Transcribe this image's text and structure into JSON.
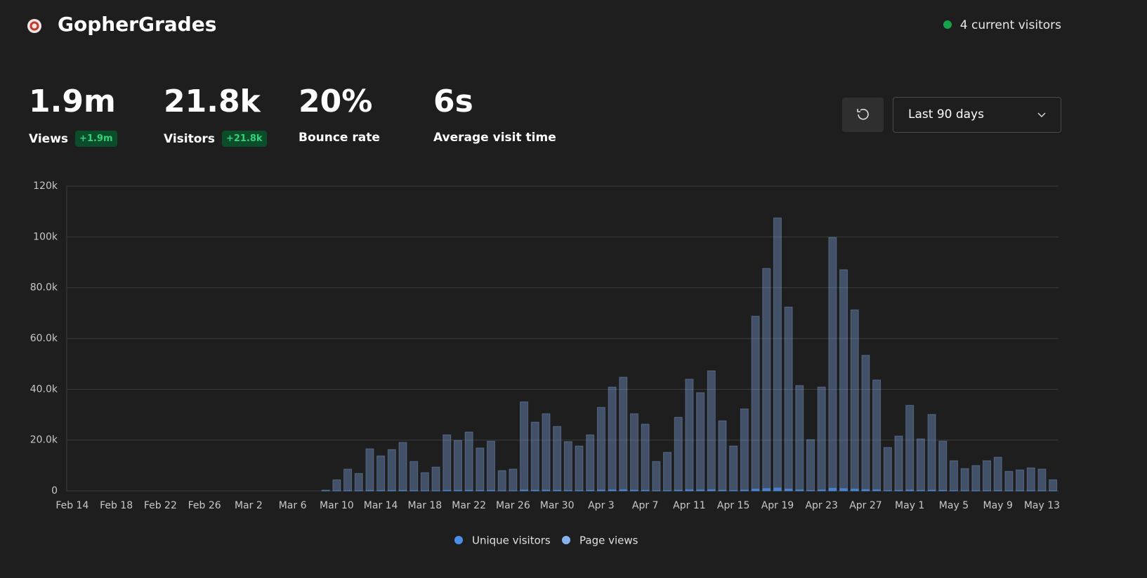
{
  "header": {
    "title": "GopherGrades",
    "visitors": "4 current visitors"
  },
  "stats": [
    {
      "value": "1.9m",
      "label": "Views",
      "change": "+1.9m"
    },
    {
      "value": "21.8k",
      "label": "Visitors",
      "change": "+21.8k"
    },
    {
      "value": "20%",
      "label": "Bounce rate"
    },
    {
      "value": "6s",
      "label": "Average visit time"
    }
  ],
  "controls": {
    "range": "Last 90 days"
  },
  "chart_data": {
    "type": "bar",
    "categories": [
      "Feb 14",
      null,
      null,
      null,
      "Feb 18",
      null,
      null,
      null,
      "Feb 22",
      null,
      null,
      null,
      "Feb 26",
      null,
      null,
      null,
      "Mar 2",
      null,
      null,
      null,
      "Mar 6",
      null,
      null,
      null,
      "Mar 10",
      null,
      null,
      null,
      "Mar 14",
      null,
      null,
      null,
      "Mar 18",
      null,
      null,
      null,
      "Mar 22",
      null,
      null,
      null,
      "Mar 26",
      null,
      null,
      null,
      "Mar 30",
      null,
      null,
      null,
      "Apr 3",
      null,
      null,
      null,
      "Apr 7",
      null,
      null,
      null,
      "Apr 11",
      null,
      null,
      null,
      "Apr 15",
      null,
      null,
      null,
      "Apr 19",
      null,
      null,
      null,
      "Apr 23",
      null,
      null,
      null,
      "Apr 27",
      null,
      null,
      null,
      "May 1",
      null,
      null,
      null,
      "May 5",
      null,
      null,
      null,
      "May 9",
      null,
      null,
      null,
      "May 13",
      null
    ],
    "series": [
      {
        "name": "Unique visitors",
        "color": "#4a8fe7",
        "values": [
          0,
          0,
          0,
          0,
          0,
          0,
          0,
          0,
          0,
          0,
          0,
          0,
          0,
          0,
          0,
          0,
          0,
          0,
          0,
          0,
          0,
          0,
          0,
          10,
          50,
          100,
          80,
          190,
          160,
          180,
          210,
          130,
          80,
          100,
          250,
          220,
          260,
          190,
          220,
          90,
          100,
          390,
          300,
          340,
          280,
          220,
          200,
          250,
          370,
          450,
          500,
          340,
          290,
          130,
          170,
          320,
          490,
          430,
          530,
          310,
          200,
          360,
          760,
          970,
          1190,
          800,
          460,
          220,
          450,
          1110,
          970,
          790,
          590,
          490,
          190,
          240,
          370,
          230,
          330,
          220,
          130,
          100,
          110,
          130,
          150,
          90,
          90,
          100,
          100,
          50
        ]
      },
      {
        "name": "Page views",
        "color": "#86b3f0",
        "values": [
          0,
          0,
          0,
          0,
          0,
          0,
          0,
          0,
          0,
          0,
          0,
          0,
          0,
          0,
          0,
          0,
          0,
          0,
          0,
          0,
          0,
          0,
          0,
          300,
          4400,
          8600,
          6900,
          16600,
          13800,
          16300,
          19100,
          11600,
          7200,
          9400,
          22100,
          19900,
          23200,
          16900,
          19600,
          8000,
          8600,
          35100,
          27100,
          30400,
          25400,
          19400,
          17700,
          22100,
          32900,
          40900,
          44800,
          30400,
          26300,
          11600,
          15200,
          29000,
          44000,
          38700,
          47300,
          27600,
          17700,
          32300,
          68800,
          87600,
          107500,
          72400,
          41500,
          20200,
          40900,
          99800,
          87100,
          71300,
          53400,
          43700,
          17100,
          21600,
          33700,
          20500,
          30100,
          19600,
          11900,
          8800,
          10000,
          11900,
          13300,
          7700,
          8300,
          9100,
          8600,
          4400
        ]
      }
    ],
    "ylim": [
      0,
      120000
    ],
    "yticks": [
      0,
      {
        "value": 20000,
        "label": "20.0k"
      },
      {
        "value": 40000,
        "label": "40.0k"
      },
      {
        "value": 60000,
        "label": "60.0k"
      },
      {
        "value": 80000,
        "label": "80.0k"
      },
      {
        "value": 100000,
        "label": "100k"
      },
      {
        "value": 120000,
        "label": "120k"
      }
    ],
    "grid": true
  }
}
